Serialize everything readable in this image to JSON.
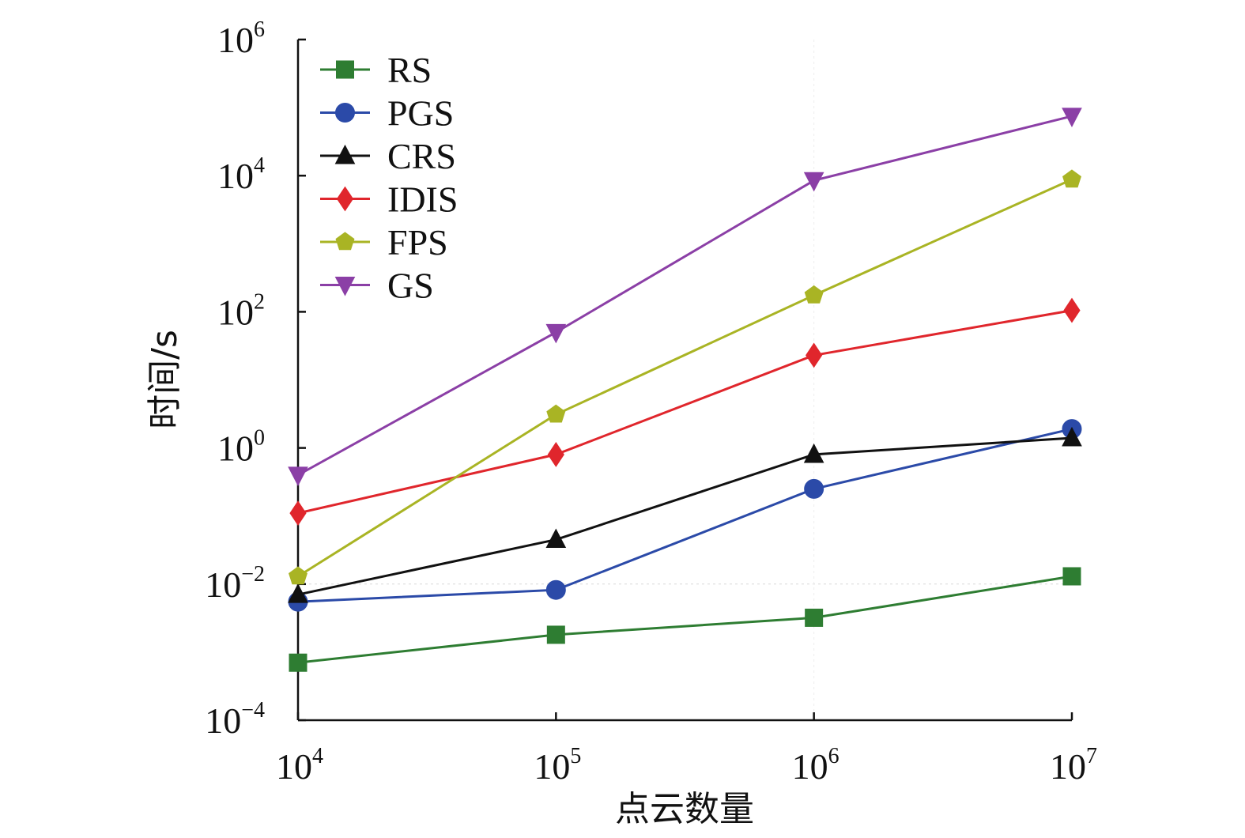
{
  "chart_data": {
    "type": "line",
    "title": "",
    "xlabel": "点云数量",
    "ylabel": "时间/s",
    "xscale": "log",
    "yscale": "log",
    "xlim": [
      10000,
      10000000
    ],
    "ylim": [
      0.0001,
      1000000
    ],
    "x": [
      10000,
      100000,
      1000000,
      10000000
    ],
    "x_ticks": [
      {
        "value": 10000,
        "base": "10",
        "exp": "4"
      },
      {
        "value": 100000,
        "base": "10",
        "exp": "5"
      },
      {
        "value": 1000000,
        "base": "10",
        "exp": "6"
      },
      {
        "value": 10000000,
        "base": "10",
        "exp": "7"
      }
    ],
    "y_ticks": [
      {
        "value": 0.0001,
        "base": "10",
        "exp": "−4"
      },
      {
        "value": 0.01,
        "base": "10",
        "exp": "−2"
      },
      {
        "value": 1,
        "base": "10",
        "exp": "0"
      },
      {
        "value": 100,
        "base": "10",
        "exp": "2"
      },
      {
        "value": 10000,
        "base": "10",
        "exp": "4"
      },
      {
        "value": 1000000,
        "base": "10",
        "exp": "6"
      }
    ],
    "legend_position": "top-left",
    "series": [
      {
        "name": "RS",
        "color": "#2e7d32",
        "marker": "square",
        "values": [
          0.0007,
          0.0018,
          0.0032,
          0.013
        ]
      },
      {
        "name": "PGS",
        "color": "#2b4aa8",
        "marker": "circle",
        "values": [
          0.0055,
          0.0082,
          0.25,
          1.9
        ]
      },
      {
        "name": "CRS",
        "color": "#111111",
        "marker": "triangle-up",
        "values": [
          0.007,
          0.045,
          0.8,
          1.4
        ]
      },
      {
        "name": "IDIS",
        "color": "#e0262c",
        "marker": "diamond",
        "values": [
          0.11,
          0.8,
          23,
          105
        ]
      },
      {
        "name": "FPS",
        "color": "#a9b424",
        "marker": "pentagon",
        "values": [
          0.013,
          3.1,
          175,
          8800
        ]
      },
      {
        "name": "GS",
        "color": "#8b3fa6",
        "marker": "triangle-down",
        "values": [
          0.4,
          50,
          8500,
          75000
        ]
      }
    ]
  }
}
